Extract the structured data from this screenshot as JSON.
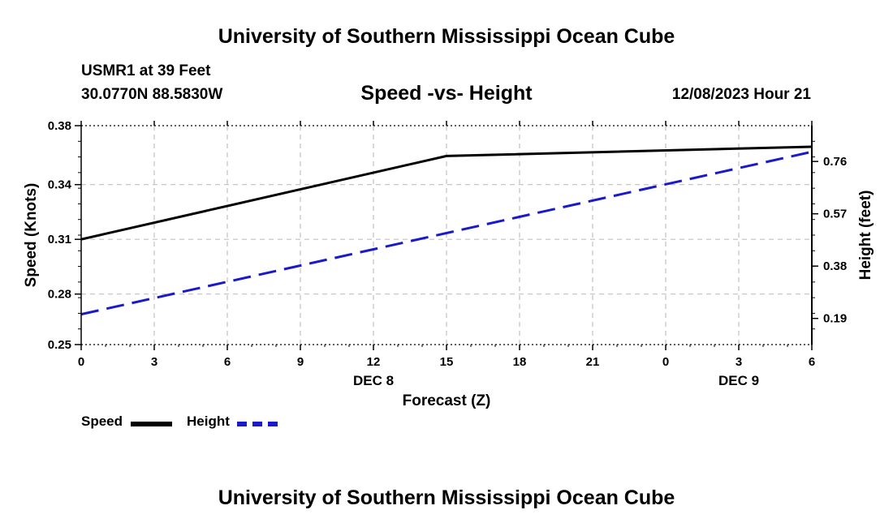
{
  "header": {
    "title": "University of Southern Mississippi Ocean Cube",
    "station": "USMR1 at 39 Feet",
    "coords": "30.0770N  88.5830W",
    "subtitle": "Speed -vs- Height",
    "datetime": "12/08/2023 Hour 21"
  },
  "footer": {
    "title": "University of Southern Mississippi Ocean Cube"
  },
  "legend": {
    "speed_label": "Speed",
    "height_label": "Height"
  },
  "colors": {
    "speed": "#000000",
    "height": "#1a1acc",
    "grid": "#c0c0c0"
  },
  "chart_data": {
    "type": "line",
    "title": "Speed -vs- Height",
    "xlabel": "Forecast (Z)",
    "ylabel": "Speed (Knots)",
    "y2label": "Height (feet)",
    "x_ticks": [
      "0",
      "3",
      "6",
      "9",
      "12",
      "15",
      "18",
      "21",
      "0",
      "3",
      "6"
    ],
    "date_labels": [
      {
        "label": "DEC 8",
        "at_hour": 12
      },
      {
        "label": "DEC 9",
        "at_hour": 27
      }
    ],
    "xlim": [
      0,
      30
    ],
    "ylim": [
      0.25,
      0.38
    ],
    "y_ticks": [
      "0.38",
      "0.34",
      "0.31",
      "0.28",
      "0.25"
    ],
    "y_tick_values": [
      0.38,
      0.345,
      0.3125,
      0.28,
      0.25
    ],
    "y2lim": [
      0.095,
      0.89
    ],
    "y2_ticks": [
      "0.76",
      "0.57",
      "0.38",
      "0.19"
    ],
    "y2_tick_values": [
      0.76,
      0.57,
      0.38,
      0.19
    ],
    "grid": true,
    "series": [
      {
        "name": "Speed",
        "axis": "left",
        "x": [
          0,
          15,
          30
        ],
        "values": [
          0.3125,
          0.362,
          0.3675
        ]
      },
      {
        "name": "Height",
        "axis": "right",
        "x": [
          0,
          30
        ],
        "values": [
          0.205,
          0.795
        ]
      }
    ]
  }
}
